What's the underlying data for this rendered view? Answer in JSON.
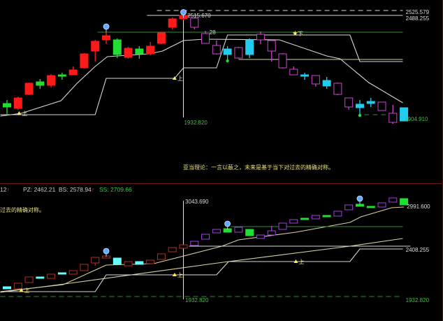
{
  "annotation_text": "亚当理论：一言以蔽之，未来是基于当下对过去的精确对称。",
  "lower_left_text": "过去的精确对称。",
  "header": {
    "first_value": "12",
    "pz_label": "PZ: 2462.21",
    "bs_label": "BS: 2578.94",
    "ss_label": "SS: 2709.66",
    "up_arrow": "↑"
  },
  "colors": {
    "background": "#000000",
    "rise": "#ff1a1a",
    "fall": "#22dd33",
    "mirror_rise": "#cc44cc",
    "mirror_fall": "#22ccee",
    "lower_rise": "#b03020",
    "lower_mirror": "#a040e0",
    "lower_fall_mirror": "#66ffff",
    "line": "#d8d8d8",
    "ma_line": "#d8d0a0",
    "level_green": "#2e8b2e",
    "label_green": "#44bb44",
    "label_white": "#dddddd",
    "marker": "#ffee55",
    "balloon": "#66aaff"
  },
  "chart_data": [
    {
      "type": "candlestick",
      "panel": "upper",
      "ylim": [
        1900,
        2540
      ],
      "candles": [
        {
          "s": "fall",
          "o": 2008,
          "h": 2028,
          "l": 1948,
          "c": 1988
        },
        {
          "s": "rise",
          "o": 1980,
          "h": 2048,
          "l": 1972,
          "c": 2040
        },
        {
          "s": "rise",
          "o": 2060,
          "h": 2128,
          "l": 2056,
          "c": 2124
        },
        {
          "s": "fall",
          "o": 2132,
          "h": 2148,
          "l": 2092,
          "c": 2112
        },
        {
          "s": "rise",
          "o": 2112,
          "h": 2176,
          "l": 2100,
          "c": 2168
        },
        {
          "s": "fall",
          "o": 2172,
          "h": 2184,
          "l": 2144,
          "c": 2164
        },
        {
          "s": "rise",
          "o": 2172,
          "h": 2220,
          "l": 2172,
          "c": 2200
        },
        {
          "s": "rise",
          "o": 2212,
          "h": 2296,
          "l": 2208,
          "c": 2292
        },
        {
          "s": "rise",
          "o": 2308,
          "h": 2372,
          "l": 2248,
          "c": 2364
        },
        {
          "s": "rise",
          "o": 2372,
          "h": 2420,
          "l": 2348,
          "c": 2396
        },
        {
          "s": "fall",
          "o": 2372,
          "h": 2380,
          "l": 2268,
          "c": 2288
        },
        {
          "s": "rise",
          "o": 2272,
          "h": 2332,
          "l": 2264,
          "c": 2324
        },
        {
          "s": "fall",
          "o": 2320,
          "h": 2336,
          "l": 2264,
          "c": 2292
        },
        {
          "s": "rise",
          "o": 2292,
          "h": 2360,
          "l": 2284,
          "c": 2336
        },
        {
          "s": "rise",
          "o": 2352,
          "h": 2416,
          "l": 2348,
          "c": 2412
        },
        {
          "s": "rise",
          "o": 2444,
          "h": 2500,
          "l": 2432,
          "c": 2492
        },
        {
          "s": "rise",
          "o": 2492,
          "h": 2516,
          "l": 2484,
          "c": 2512
        },
        {
          "s": "mirror_rise",
          "o": 2496,
          "h": 2500,
          "l": 2432,
          "c": 2444
        },
        {
          "s": "mirror_rise",
          "o": 2408,
          "h": 2424,
          "l": 2352,
          "c": 2352
        },
        {
          "s": "mirror_rise",
          "o": 2340,
          "h": 2368,
          "l": 2288,
          "c": 2292
        },
        {
          "s": "mirror_fall",
          "o": 2320,
          "h": 2336,
          "l": 2256,
          "c": 2288
        },
        {
          "s": "mirror_rise",
          "o": 2328,
          "h": 2332,
          "l": 2264,
          "c": 2268
        },
        {
          "s": "mirror_fall",
          "o": 2372,
          "h": 2380,
          "l": 2268,
          "c": 2288
        },
        {
          "s": "mirror_rise",
          "o": 2404,
          "h": 2420,
          "l": 2348,
          "c": 2372
        },
        {
          "s": "mirror_rise",
          "o": 2368,
          "h": 2372,
          "l": 2248,
          "c": 2308
        },
        {
          "s": "mirror_rise",
          "o": 2292,
          "h": 2296,
          "l": 2208,
          "c": 2212
        },
        {
          "s": "mirror_rise",
          "o": 2204,
          "h": 2220,
          "l": 2172,
          "c": 2172
        },
        {
          "s": "mirror_fall",
          "o": 2172,
          "h": 2184,
          "l": 2144,
          "c": 2164
        },
        {
          "s": "mirror_rise",
          "o": 2168,
          "h": 2168,
          "l": 2104,
          "c": 2120
        },
        {
          "s": "mirror_fall",
          "o": 2140,
          "h": 2160,
          "l": 2092,
          "c": 2108
        },
        {
          "s": "mirror_rise",
          "o": 2124,
          "h": 2128,
          "l": 2056,
          "c": 2060
        },
        {
          "s": "mirror_rise",
          "o": 2040,
          "h": 2040,
          "l": 1972,
          "c": 1988
        },
        {
          "s": "mirror_fall",
          "o": 2004,
          "h": 2028,
          "l": 1948,
          "c": 1984
        },
        {
          "s": "mirror_fall",
          "o": 2020,
          "h": 2040,
          "l": 1988,
          "c": 2008
        },
        {
          "s": "mirror_rise",
          "o": 2016,
          "h": 2016,
          "l": 1968,
          "c": 1968
        },
        {
          "s": "mirror_rise",
          "o": 1952,
          "h": 2000,
          "l": 1892,
          "c": 1900
        },
        {
          "s": "mirror_fall",
          "o": 1984,
          "h": 1984,
          "l": 1908,
          "c": 1908
        }
      ],
      "lines": [
        {
          "kind": "curve",
          "color": "line",
          "points": [
            [
              -0.6,
              1936
            ],
            [
              1.3,
              1952
            ],
            [
              4.9,
              2024
            ],
            [
              6.3,
              2120
            ],
            [
              8.0,
              2220
            ],
            [
              9.1,
              2276
            ],
            [
              12.9,
              2292
            ],
            [
              14.1,
              2308
            ],
            [
              16.0,
              2368
            ],
            [
              17.9,
              2376
            ],
            [
              24.7,
              2372
            ],
            [
              29.0,
              2280
            ],
            [
              30.2,
              2264
            ],
            [
              32.8,
              2128
            ],
            [
              35.9,
              2012
            ]
          ]
        },
        {
          "kind": "step",
          "color": "line",
          "points": [
            [
              -0.6,
              1944
            ],
            [
              8.0,
              1944
            ],
            [
              9.0,
              2152
            ],
            [
              15.2,
              2152
            ],
            [
              16.0,
              2212
            ],
            [
              19.0,
              2212
            ],
            [
              20.0,
              2400
            ],
            [
              31.1,
              2400
            ],
            [
              32.0,
              2248
            ],
            [
              35.9,
              2248
            ]
          ]
        },
        {
          "kind": "level",
          "color": "ma_line",
          "points": [
            [
              21.0,
              2260
            ],
            [
              35.9,
              2260
            ]
          ]
        },
        {
          "kind": "level",
          "color": "level_green",
          "points": [
            [
              8.2,
              2416
            ],
            [
              35.9,
              2416
            ]
          ]
        },
        {
          "kind": "level",
          "color": "line",
          "points": [
            [
              12.7,
              2512
            ],
            [
              35.9,
              2512
            ]
          ]
        },
        {
          "kind": "dashed",
          "color": "line",
          "points": [
            [
              13.6,
              2540
            ],
            [
              35.9,
              2540
            ]
          ]
        },
        {
          "kind": "dashed",
          "color": "level_green",
          "points": [
            [
              32.4,
              1944
            ],
            [
              34.6,
              1944
            ]
          ]
        },
        {
          "kind": "vertical",
          "color": "line",
          "points": [
            [
              16.0,
              2540
            ],
            [
              16.0,
              1928
            ]
          ]
        }
      ],
      "markers": [
        {
          "kind": "balloon",
          "i": 9,
          "p": 2448
        },
        {
          "kind": "balloon",
          "i": 16,
          "p": 2530
        },
        {
          "kind": "dot",
          "i": 20,
          "p": 2252
        },
        {
          "kind": "dot",
          "i": 32,
          "p": 1940
        },
        {
          "kind": "triangle",
          "i": 1.1,
          "p": 1952,
          "label": "上"
        },
        {
          "kind": "triangle",
          "i": 15.2,
          "p": 2152,
          "label": "上"
        },
        {
          "kind": "star",
          "i": 26.1,
          "p": 2408,
          "label": "下"
        }
      ],
      "labels": [
        {
          "text": "2515.670",
          "i": 16.3,
          "p": 2512,
          "color": "label_white"
        },
        {
          "text": "2525.579",
          "i": 36.1,
          "p": 2532,
          "color": "label_white"
        },
        {
          "text": "2488.255",
          "i": 36.1,
          "p": 2496,
          "color": "label_white"
        },
        {
          "text": "28",
          "i": 18.3,
          "p": 2416,
          "color": "label_white"
        },
        {
          "text": "1932.820",
          "i": 16.0,
          "p": 1900,
          "color": "label_green"
        },
        {
          "text": "1904.910",
          "i": 36.0,
          "p": 1920,
          "color": "label_green"
        }
      ]
    },
    {
      "type": "candlestick",
      "panel": "lower",
      "ylim": [
        1916,
        3076
      ],
      "candles": [
        {
          "s": "fall",
          "o": 2060,
          "h": 2060,
          "l": 2036,
          "c": 2036
        },
        {
          "s": "rise",
          "o": 2036,
          "h": 2100,
          "l": 2036,
          "c": 2100
        },
        {
          "s": "rise",
          "o": 2108,
          "h": 2172,
          "l": 2108,
          "c": 2172
        },
        {
          "s": "fall",
          "o": 2172,
          "h": 2172,
          "l": 2164,
          "c": 2164
        },
        {
          "s": "rise",
          "o": 2156,
          "h": 2204,
          "l": 2156,
          "c": 2204
        },
        {
          "s": "fall",
          "o": 2220,
          "h": 2220,
          "l": 2204,
          "c": 2204
        },
        {
          "s": "rise",
          "o": 2204,
          "h": 2244,
          "l": 2204,
          "c": 2244
        },
        {
          "s": "rise",
          "o": 2244,
          "h": 2316,
          "l": 2244,
          "c": 2316
        },
        {
          "s": "rise",
          "o": 2332,
          "h": 2396,
          "l": 2300,
          "c": 2396
        },
        {
          "s": "rise",
          "o": 2388,
          "h": 2412,
          "l": 2388,
          "c": 2412
        },
        {
          "s": "fall",
          "o": 2388,
          "h": 2388,
          "l": 2316,
          "c": 2316
        },
        {
          "s": "rise",
          "o": 2300,
          "h": 2348,
          "l": 2300,
          "c": 2348
        },
        {
          "s": "fall",
          "o": 2348,
          "h": 2348,
          "l": 2316,
          "c": 2316
        },
        {
          "s": "rise",
          "o": 2324,
          "h": 2364,
          "l": 2324,
          "c": 2364
        },
        {
          "s": "rise",
          "o": 2372,
          "h": 2436,
          "l": 2372,
          "c": 2436
        },
        {
          "s": "rise",
          "o": 2460,
          "h": 2508,
          "l": 2460,
          "c": 2508
        },
        {
          "s": "rise",
          "o": 2500,
          "h": 2540,
          "l": 2500,
          "c": 2540
        },
        {
          "s": "mirror_rise",
          "o": 2532,
          "h": 2580,
          "l": 2532,
          "c": 2580
        },
        {
          "s": "mirror_rise",
          "o": 2604,
          "h": 2660,
          "l": 2604,
          "c": 2660
        },
        {
          "s": "mirror_rise",
          "o": 2676,
          "h": 2716,
          "l": 2676,
          "c": 2716
        },
        {
          "s": "mirror_fall",
          "o": 2724,
          "h": 2724,
          "l": 2684,
          "c": 2684
        },
        {
          "s": "mirror_rise",
          "o": 2684,
          "h": 2740,
          "l": 2684,
          "c": 2740
        },
        {
          "s": "mirror_fall",
          "o": 2716,
          "h": 2716,
          "l": 2644,
          "c": 2644
        },
        {
          "s": "mirror_rise",
          "o": 2612,
          "h": 2652,
          "l": 2612,
          "c": 2652
        },
        {
          "s": "mirror_rise",
          "o": 2652,
          "h": 2756,
          "l": 2652,
          "c": 2700
        },
        {
          "s": "mirror_rise",
          "o": 2716,
          "h": 2788,
          "l": 2716,
          "c": 2788
        },
        {
          "s": "mirror_rise",
          "o": 2788,
          "h": 2828,
          "l": 2788,
          "c": 2828
        },
        {
          "s": "mirror_fall",
          "o": 2844,
          "h": 2844,
          "l": 2828,
          "c": 2828
        },
        {
          "s": "mirror_rise",
          "o": 2836,
          "h": 2876,
          "l": 2836,
          "c": 2876
        },
        {
          "s": "mirror_fall",
          "o": 2876,
          "h": 2876,
          "l": 2860,
          "c": 2860
        },
        {
          "s": "mirror_rise",
          "o": 2868,
          "h": 2924,
          "l": 2868,
          "c": 2924
        },
        {
          "s": "mirror_rise",
          "o": 2940,
          "h": 2996,
          "l": 2940,
          "c": 2996
        },
        {
          "s": "mirror_fall",
          "o": 3004,
          "h": 3004,
          "l": 2980,
          "c": 2980
        },
        {
          "s": "mirror_fall",
          "o": 2980,
          "h": 2980,
          "l": 2964,
          "c": 2964
        },
        {
          "s": "mirror_rise",
          "o": 2972,
          "h": 3020,
          "l": 2972,
          "c": 3020
        },
        {
          "s": "mirror_rise",
          "o": 3028,
          "h": 3076,
          "l": 3028,
          "c": 3076
        },
        {
          "s": "mirror_fall",
          "o": 3068,
          "h": 3068,
          "l": 2996,
          "c": 2996
        }
      ],
      "lines": [
        {
          "kind": "curve",
          "color": "ma_line",
          "points": [
            [
              -0.6,
              2004
            ],
            [
              5.1,
              2084
            ],
            [
              9.0,
              2308
            ],
            [
              13.3,
              2324
            ],
            [
              19.5,
              2524
            ],
            [
              21.0,
              2596
            ],
            [
              26.2,
              2684
            ],
            [
              31.1,
              2796
            ],
            [
              32.1,
              2860
            ],
            [
              34.9,
              2964
            ],
            [
              36.0,
              2972
            ]
          ]
        },
        {
          "kind": "curve",
          "color": "ma_line",
          "points": [
            [
              -0.6,
              1996
            ],
            [
              5.7,
              2100
            ],
            [
              19.6,
              2340
            ],
            [
              31.1,
              2524
            ],
            [
              35.9,
              2612
            ]
          ]
        },
        {
          "kind": "step",
          "color": "line",
          "points": [
            [
              -0.6,
              2004
            ],
            [
              8.0,
              2004
            ],
            [
              9.0,
              2196
            ],
            [
              19.0,
              2196
            ],
            [
              20.1,
              2348
            ],
            [
              31.1,
              2348
            ],
            [
              32.0,
              2492
            ],
            [
              35.9,
              2492
            ]
          ]
        },
        {
          "kind": "level",
          "color": "line",
          "points": [
            [
              16.5,
              2524
            ],
            [
              36.6,
              2524
            ]
          ]
        },
        {
          "kind": "level",
          "color": "level_green",
          "points": [
            [
              20.3,
              2748
            ],
            [
              35.9,
              2748
            ]
          ]
        },
        {
          "kind": "dashed",
          "color": "level_green",
          "points": [
            [
              -0.6,
              1948
            ],
            [
              35.9,
              1948
            ]
          ]
        },
        {
          "kind": "vertical",
          "color": "line",
          "points": [
            [
              16.0,
              3044
            ],
            [
              16.0,
              1916
            ]
          ]
        }
      ],
      "markers": [
        {
          "kind": "balloon",
          "i": 9,
          "p": 2468
        },
        {
          "kind": "balloon",
          "i": 20,
          "p": 2780
        },
        {
          "kind": "balloon",
          "i": 32,
          "p": 3068
        },
        {
          "kind": "triangle",
          "i": 1.3,
          "p": 2020,
          "label": "上"
        },
        {
          "kind": "triangle",
          "i": 15.2,
          "p": 2196,
          "label": "上"
        },
        {
          "kind": "triangle",
          "i": 26.2,
          "p": 2348,
          "label": "上"
        }
      ],
      "labels": [
        {
          "text": "3043.690",
          "i": 16.1,
          "p": 3036,
          "color": "label_white"
        },
        {
          "text": "2991.600",
          "i": 36.2,
          "p": 2980,
          "color": "label_white"
        },
        {
          "text": "2408.255",
          "i": 36.1,
          "p": 2484,
          "color": "label_white"
        },
        {
          "text": "1932.820",
          "i": 16.1,
          "p": 1908,
          "color": "label_green"
        },
        {
          "text": "1932.820",
          "i": 36.1,
          "p": 1908,
          "color": "label_green"
        }
      ]
    }
  ]
}
